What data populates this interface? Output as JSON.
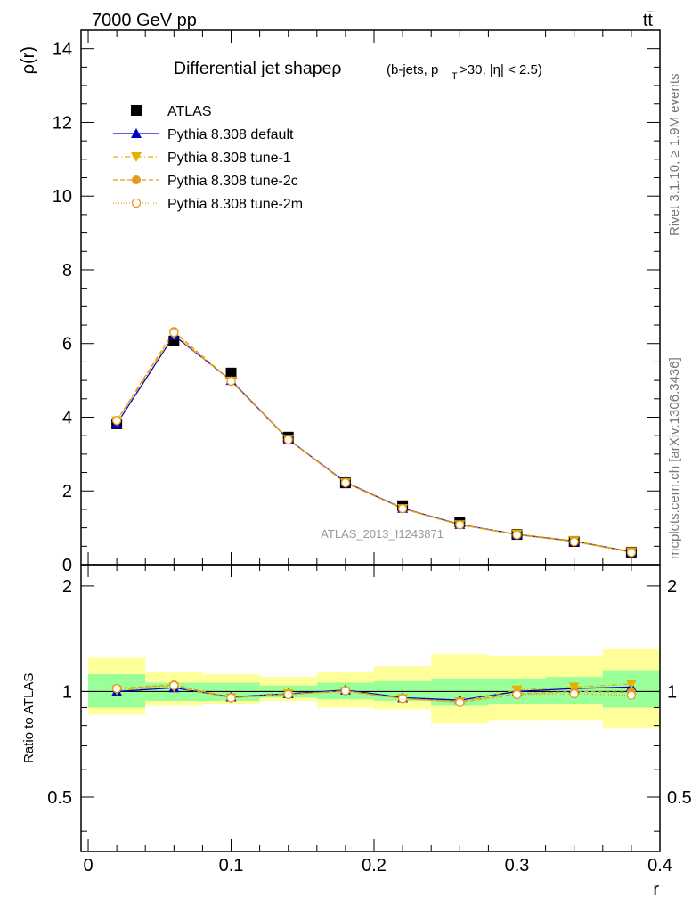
{
  "header": {
    "beam": "7000 GeV pp",
    "process": "tt̄"
  },
  "title": {
    "main": "Differential jet shapeρ",
    "sub": "(b-jets, p",
    "sub_sub": "T",
    "sub_rest": ">30, |η| < 2.5)"
  },
  "side_labels": {
    "rivet": "Rivet 3.1.10, ≥ 1.9M events",
    "mcplots": "mcplots.cern.ch [arXiv:1306.3436]"
  },
  "watermark": "ATLAS_2013_I1243871",
  "axis": {
    "ylabel_top": "ρ(r)",
    "ylabel_bottom": "Ratio to ATLAS",
    "xlabel": "r"
  },
  "legend": [
    {
      "label": "ATLAS",
      "color": "#000000",
      "marker": "square",
      "dash": ""
    },
    {
      "label": "Pythia 8.308 default",
      "color": "#0000cc",
      "marker": "triangle-up",
      "dash": ""
    },
    {
      "label": "Pythia 8.308 tune-1",
      "color": "#e6b000",
      "marker": "triangle-down",
      "dash": "6,3,1,3"
    },
    {
      "label": "Pythia 8.308 tune-2c",
      "color": "#e69a1a",
      "marker": "circle",
      "dash": "5,3"
    },
    {
      "label": "Pythia 8.308 tune-2m",
      "color": "#e69a1a",
      "marker": "circle-open",
      "dash": "1,2"
    }
  ],
  "colors": {
    "band_inner": "#99ff99",
    "band_outer": "#ffff99"
  },
  "chart_data": {
    "type": "scatter",
    "x": [
      0.02,
      0.06,
      0.1,
      0.14,
      0.18,
      0.22,
      0.26,
      0.3,
      0.34,
      0.38
    ],
    "xlim": [
      -0.005,
      0.4
    ],
    "ylim_top": [
      0,
      14.5
    ],
    "ylim_ratio": [
      0.35,
      2.3
    ],
    "xticks": [
      "0",
      "0.1",
      "0.2",
      "0.3",
      "0.4"
    ],
    "yticks_top": [
      "0",
      "2",
      "4",
      "6",
      "8",
      "10",
      "12",
      "14"
    ],
    "yticks_ratio": [
      "0.5",
      "1",
      "2"
    ],
    "series": [
      {
        "name": "ATLAS",
        "values": [
          3.82,
          6.07,
          5.2,
          3.46,
          2.22,
          1.6,
          1.16,
          0.82,
          0.63,
          0.34
        ]
      },
      {
        "name": "Pythia 8.308 default",
        "values": [
          3.82,
          6.22,
          5.0,
          3.4,
          2.24,
          1.53,
          1.09,
          0.82,
          0.64,
          0.35
        ]
      },
      {
        "name": "Pythia 8.308 tune-1",
        "values": [
          3.9,
          6.25,
          4.98,
          3.4,
          2.22,
          1.52,
          1.08,
          0.83,
          0.65,
          0.35
        ]
      },
      {
        "name": "Pythia 8.308 tune-2c",
        "values": [
          3.91,
          6.33,
          4.98,
          3.39,
          2.23,
          1.52,
          1.08,
          0.81,
          0.63,
          0.34
        ]
      },
      {
        "name": "Pythia 8.308 tune-2m",
        "values": [
          3.91,
          6.3,
          4.98,
          3.39,
          2.22,
          1.52,
          1.08,
          0.81,
          0.62,
          0.33
        ]
      }
    ],
    "ratio_series": [
      {
        "name": "Pythia 8.308 default",
        "values": [
          1.0,
          1.025,
          0.965,
          0.985,
          1.01,
          0.96,
          0.945,
          1.0,
          1.02,
          1.03
        ]
      },
      {
        "name": "Pythia 8.308 tune-1",
        "values": [
          1.01,
          1.03,
          0.96,
          0.985,
          1.0,
          0.955,
          0.935,
          1.01,
          1.03,
          1.05
        ]
      },
      {
        "name": "Pythia 8.308 tune-2c",
        "values": [
          1.02,
          1.045,
          0.96,
          0.98,
          1.005,
          0.955,
          0.935,
          0.985,
          1.0,
          0.995
        ]
      },
      {
        "name": "Pythia 8.308 tune-2m",
        "values": [
          1.02,
          1.04,
          0.96,
          0.98,
          1.005,
          0.955,
          0.93,
          0.98,
          0.985,
          0.975
        ]
      }
    ],
    "bands": {
      "edges": [
        0.0,
        0.04,
        0.08,
        0.12,
        0.16,
        0.2,
        0.24,
        0.28,
        0.32,
        0.36,
        0.4
      ],
      "inner_low": [
        0.9,
        0.94,
        0.94,
        0.96,
        0.95,
        0.94,
        0.91,
        0.92,
        0.92,
        0.9
      ],
      "inner_high": [
        1.12,
        1.06,
        1.06,
        1.04,
        1.06,
        1.07,
        1.09,
        1.09,
        1.1,
        1.15
      ],
      "outer_low": [
        0.86,
        0.91,
        0.92,
        0.94,
        0.9,
        0.89,
        0.81,
        0.83,
        0.83,
        0.79
      ],
      "outer_high": [
        1.25,
        1.14,
        1.12,
        1.1,
        1.14,
        1.18,
        1.28,
        1.26,
        1.26,
        1.32
      ]
    }
  }
}
